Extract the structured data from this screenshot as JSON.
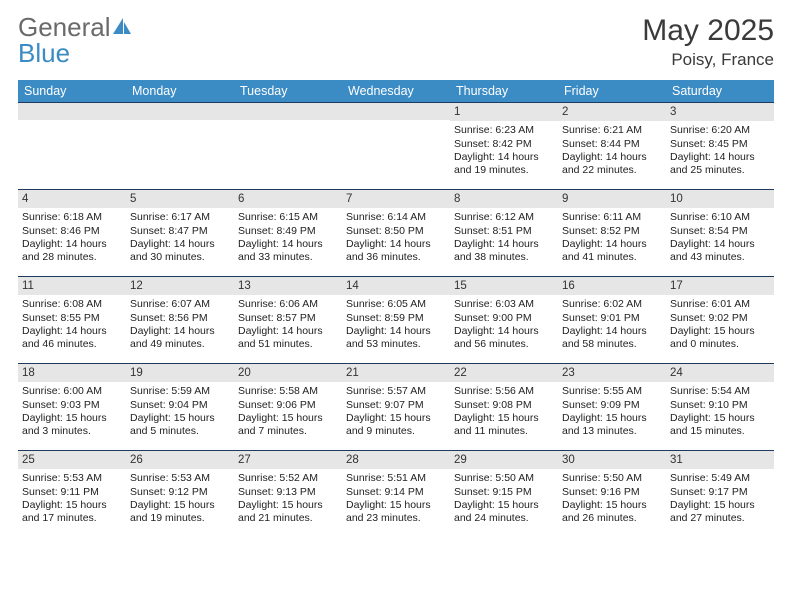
{
  "logo": {
    "text1": "General",
    "text2": "Blue",
    "color1": "#6a6a6a",
    "color2": "#3b8bc4"
  },
  "title": "May 2025",
  "location": "Poisy, France",
  "header_bg": "#3b8bc4",
  "row_border": "#1f3a5f",
  "daynum_bg": "#e6e6e6",
  "columns": [
    "Sunday",
    "Monday",
    "Tuesday",
    "Wednesday",
    "Thursday",
    "Friday",
    "Saturday"
  ],
  "weeks": [
    [
      null,
      null,
      null,
      null,
      {
        "d": "1",
        "sr": "6:23 AM",
        "ss": "8:42 PM",
        "dl": "14 hours and 19 minutes."
      },
      {
        "d": "2",
        "sr": "6:21 AM",
        "ss": "8:44 PM",
        "dl": "14 hours and 22 minutes."
      },
      {
        "d": "3",
        "sr": "6:20 AM",
        "ss": "8:45 PM",
        "dl": "14 hours and 25 minutes."
      }
    ],
    [
      {
        "d": "4",
        "sr": "6:18 AM",
        "ss": "8:46 PM",
        "dl": "14 hours and 28 minutes."
      },
      {
        "d": "5",
        "sr": "6:17 AM",
        "ss": "8:47 PM",
        "dl": "14 hours and 30 minutes."
      },
      {
        "d": "6",
        "sr": "6:15 AM",
        "ss": "8:49 PM",
        "dl": "14 hours and 33 minutes."
      },
      {
        "d": "7",
        "sr": "6:14 AM",
        "ss": "8:50 PM",
        "dl": "14 hours and 36 minutes."
      },
      {
        "d": "8",
        "sr": "6:12 AM",
        "ss": "8:51 PM",
        "dl": "14 hours and 38 minutes."
      },
      {
        "d": "9",
        "sr": "6:11 AM",
        "ss": "8:52 PM",
        "dl": "14 hours and 41 minutes."
      },
      {
        "d": "10",
        "sr": "6:10 AM",
        "ss": "8:54 PM",
        "dl": "14 hours and 43 minutes."
      }
    ],
    [
      {
        "d": "11",
        "sr": "6:08 AM",
        "ss": "8:55 PM",
        "dl": "14 hours and 46 minutes."
      },
      {
        "d": "12",
        "sr": "6:07 AM",
        "ss": "8:56 PM",
        "dl": "14 hours and 49 minutes."
      },
      {
        "d": "13",
        "sr": "6:06 AM",
        "ss": "8:57 PM",
        "dl": "14 hours and 51 minutes."
      },
      {
        "d": "14",
        "sr": "6:05 AM",
        "ss": "8:59 PM",
        "dl": "14 hours and 53 minutes."
      },
      {
        "d": "15",
        "sr": "6:03 AM",
        "ss": "9:00 PM",
        "dl": "14 hours and 56 minutes."
      },
      {
        "d": "16",
        "sr": "6:02 AM",
        "ss": "9:01 PM",
        "dl": "14 hours and 58 minutes."
      },
      {
        "d": "17",
        "sr": "6:01 AM",
        "ss": "9:02 PM",
        "dl": "15 hours and 0 minutes."
      }
    ],
    [
      {
        "d": "18",
        "sr": "6:00 AM",
        "ss": "9:03 PM",
        "dl": "15 hours and 3 minutes."
      },
      {
        "d": "19",
        "sr": "5:59 AM",
        "ss": "9:04 PM",
        "dl": "15 hours and 5 minutes."
      },
      {
        "d": "20",
        "sr": "5:58 AM",
        "ss": "9:06 PM",
        "dl": "15 hours and 7 minutes."
      },
      {
        "d": "21",
        "sr": "5:57 AM",
        "ss": "9:07 PM",
        "dl": "15 hours and 9 minutes."
      },
      {
        "d": "22",
        "sr": "5:56 AM",
        "ss": "9:08 PM",
        "dl": "15 hours and 11 minutes."
      },
      {
        "d": "23",
        "sr": "5:55 AM",
        "ss": "9:09 PM",
        "dl": "15 hours and 13 minutes."
      },
      {
        "d": "24",
        "sr": "5:54 AM",
        "ss": "9:10 PM",
        "dl": "15 hours and 15 minutes."
      }
    ],
    [
      {
        "d": "25",
        "sr": "5:53 AM",
        "ss": "9:11 PM",
        "dl": "15 hours and 17 minutes."
      },
      {
        "d": "26",
        "sr": "5:53 AM",
        "ss": "9:12 PM",
        "dl": "15 hours and 19 minutes."
      },
      {
        "d": "27",
        "sr": "5:52 AM",
        "ss": "9:13 PM",
        "dl": "15 hours and 21 minutes."
      },
      {
        "d": "28",
        "sr": "5:51 AM",
        "ss": "9:14 PM",
        "dl": "15 hours and 23 minutes."
      },
      {
        "d": "29",
        "sr": "5:50 AM",
        "ss": "9:15 PM",
        "dl": "15 hours and 24 minutes."
      },
      {
        "d": "30",
        "sr": "5:50 AM",
        "ss": "9:16 PM",
        "dl": "15 hours and 26 minutes."
      },
      {
        "d": "31",
        "sr": "5:49 AM",
        "ss": "9:17 PM",
        "dl": "15 hours and 27 minutes."
      }
    ]
  ],
  "labels": {
    "sunrise": "Sunrise:",
    "sunset": "Sunset:",
    "daylight": "Daylight:"
  }
}
